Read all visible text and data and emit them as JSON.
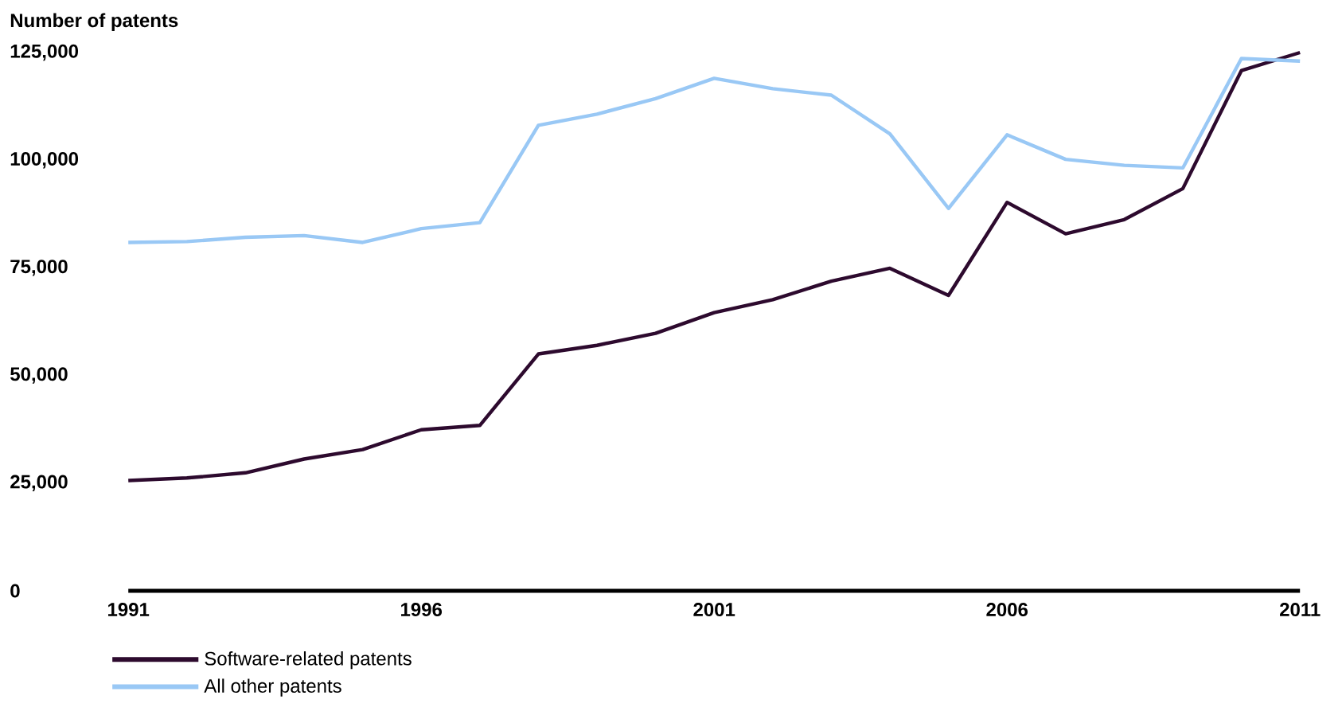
{
  "chart_data": {
    "type": "line",
    "ylabel": "Number of patents",
    "x": [
      1991,
      1992,
      1993,
      1994,
      1995,
      1996,
      1997,
      1998,
      1999,
      2000,
      2001,
      2002,
      2003,
      2004,
      2005,
      2006,
      2007,
      2008,
      2009,
      2010,
      2011
    ],
    "series": [
      {
        "name": "Software-related patents",
        "color": "#2d0a2e",
        "values": [
          25600,
          26200,
          27400,
          30600,
          32800,
          37400,
          38400,
          55000,
          57000,
          59800,
          64600,
          67600,
          71900,
          74900,
          68600,
          90200,
          82900,
          86200,
          93400,
          120800,
          125000
        ]
      },
      {
        "name": "All other patents",
        "color": "#99c8f5",
        "values": [
          80900,
          81100,
          82100,
          82500,
          80900,
          84100,
          85500,
          108100,
          110700,
          114300,
          119000,
          116600,
          115100,
          106100,
          88800,
          105900,
          100200,
          98800,
          98200,
          123600,
          123000
        ]
      }
    ],
    "xlim": [
      1991,
      2011
    ],
    "xticks": [
      1991,
      1996,
      2001,
      2006,
      2011
    ],
    "ylim": [
      0,
      125000
    ],
    "yticks": [
      0,
      {
        "value": 25000,
        "label": "25,000"
      },
      {
        "value": 50000,
        "label": "50,000"
      },
      {
        "value": 75000,
        "label": "75,000"
      },
      {
        "value": 100000,
        "label": "100,000"
      },
      {
        "value": 125000,
        "label": "125,000"
      }
    ],
    "legend": "bottom left",
    "marker": "none",
    "line_style": "solid"
  }
}
